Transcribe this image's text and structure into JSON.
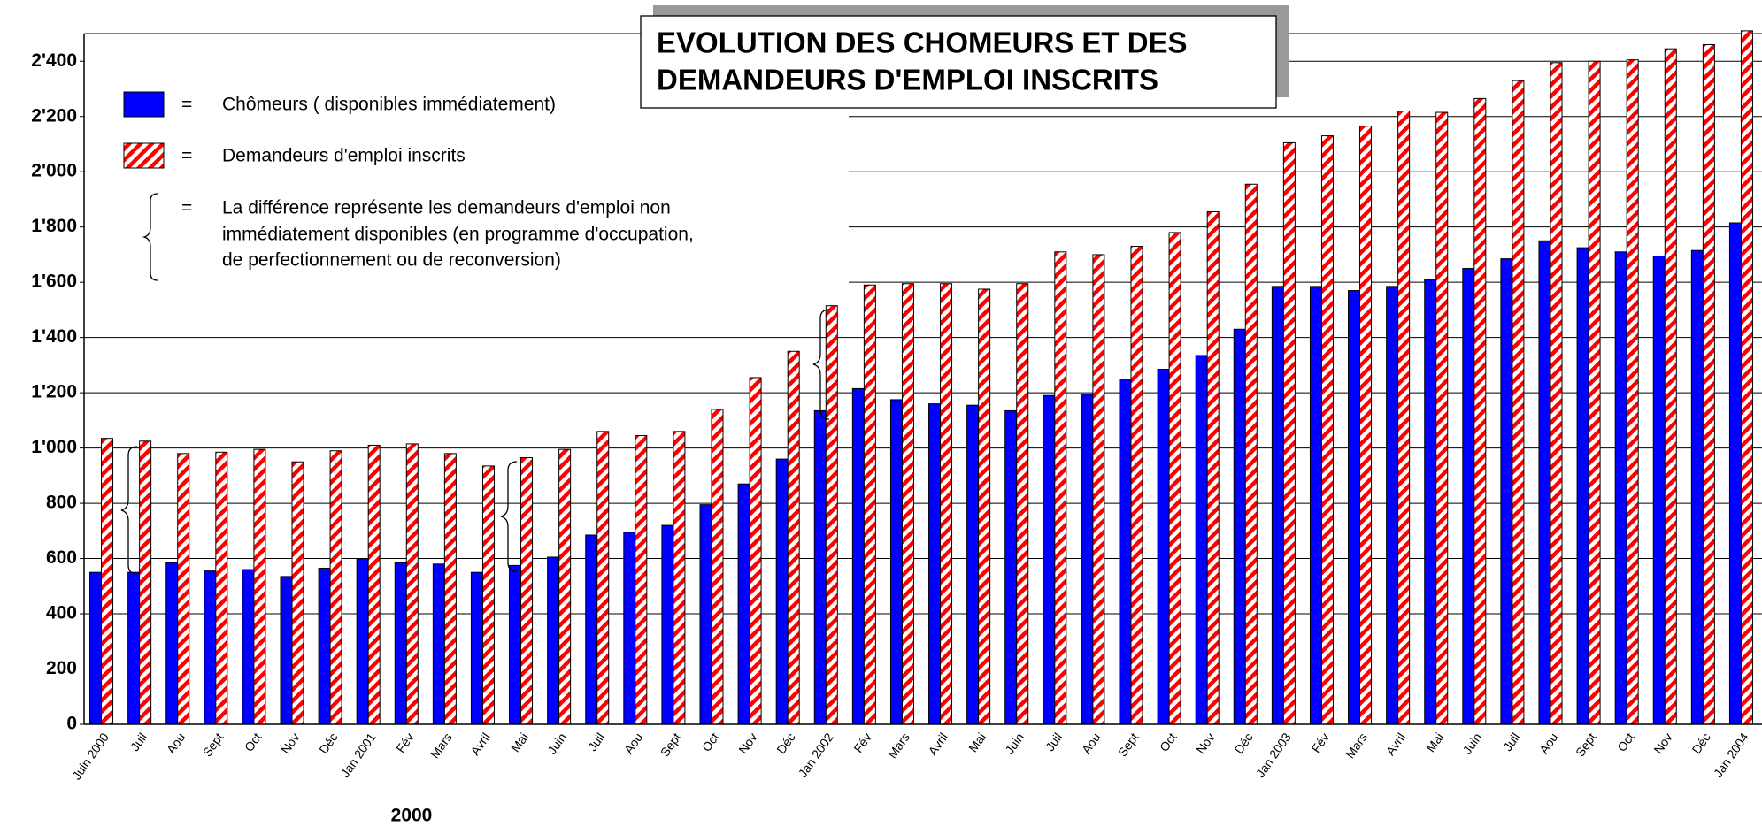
{
  "chart_data": {
    "type": "bar",
    "title": [
      "EVOLUTION  DES  CHOMEURS  ET  DES",
      "DEMANDEURS  D'EMPLOI  INSCRITS"
    ],
    "x_group_label": "2000",
    "categories": [
      "Juin 2000",
      "Juil",
      "Aou",
      "Sept",
      "Oct",
      "Nov",
      "Déc",
      "Jan 2001",
      "Fév",
      "Mars",
      "Avril",
      "Mai",
      "Juin",
      "Juil",
      "Aou",
      "Sept",
      "Oct",
      "Nov",
      "Déc",
      "Jan 2002",
      "Fév",
      "Mars",
      "Avril",
      "Mai",
      "Juin",
      "Juil",
      "Aou",
      "Sept",
      "Oct",
      "Nov",
      "Déc",
      "Jan 2003",
      "Fév",
      "Mars",
      "Avril",
      "Mai",
      "Juin",
      "Juil",
      "Aou",
      "Sept",
      "Oct",
      "Nov",
      "Déc",
      "Jan 2004"
    ],
    "series": [
      {
        "name": "Chômeurs ( disponibles  immédiatement)",
        "color": "#0000ff",
        "values": [
          550,
          550,
          585,
          555,
          560,
          535,
          565,
          600,
          585,
          580,
          550,
          575,
          605,
          685,
          695,
          720,
          795,
          870,
          960,
          1135,
          1215,
          1175,
          1160,
          1155,
          1135,
          1190,
          1195,
          1250,
          1285,
          1335,
          1430,
          1585,
          1585,
          1570,
          1585,
          1610,
          1650,
          1685,
          1750,
          1725,
          1710,
          1695,
          1715,
          1815
        ]
      },
      {
        "name": "Demandeurs d'emploi inscrits",
        "color": "#ff0000",
        "hatch": true,
        "values": [
          1035,
          1025,
          980,
          985,
          995,
          950,
          990,
          1010,
          1015,
          980,
          935,
          965,
          995,
          1060,
          1045,
          1060,
          1140,
          1255,
          1350,
          1515,
          1590,
          1595,
          1595,
          1575,
          1595,
          1710,
          1700,
          1730,
          1780,
          1855,
          1955,
          2105,
          2130,
          2165,
          2220,
          2215,
          2265,
          2330,
          2395,
          2400,
          2405,
          2445,
          2460,
          2510
        ]
      }
    ],
    "legend": {
      "separator": "=",
      "note": [
        "La différence représente les demandeurs d'emploi non",
        "immédiatement disponibles  (en programme d'occupation,",
        "de perfectionnement ou de reconversion)"
      ]
    },
    "ylim": [
      0,
      2500
    ],
    "yticks": [
      0,
      200,
      400,
      600,
      800,
      {
        "value": 1000,
        "label": "1'000"
      },
      {
        "value": 1200,
        "label": "1'200"
      },
      {
        "value": 1400,
        "label": "1'400"
      },
      {
        "value": 1600,
        "label": "1'600"
      },
      {
        "value": 1800,
        "label": "1'800"
      },
      {
        "value": 2000,
        "label": "2'000"
      },
      {
        "value": 2200,
        "label": "2'200"
      },
      {
        "value": 2400,
        "label": "2'400"
      }
    ],
    "grid": true
  }
}
